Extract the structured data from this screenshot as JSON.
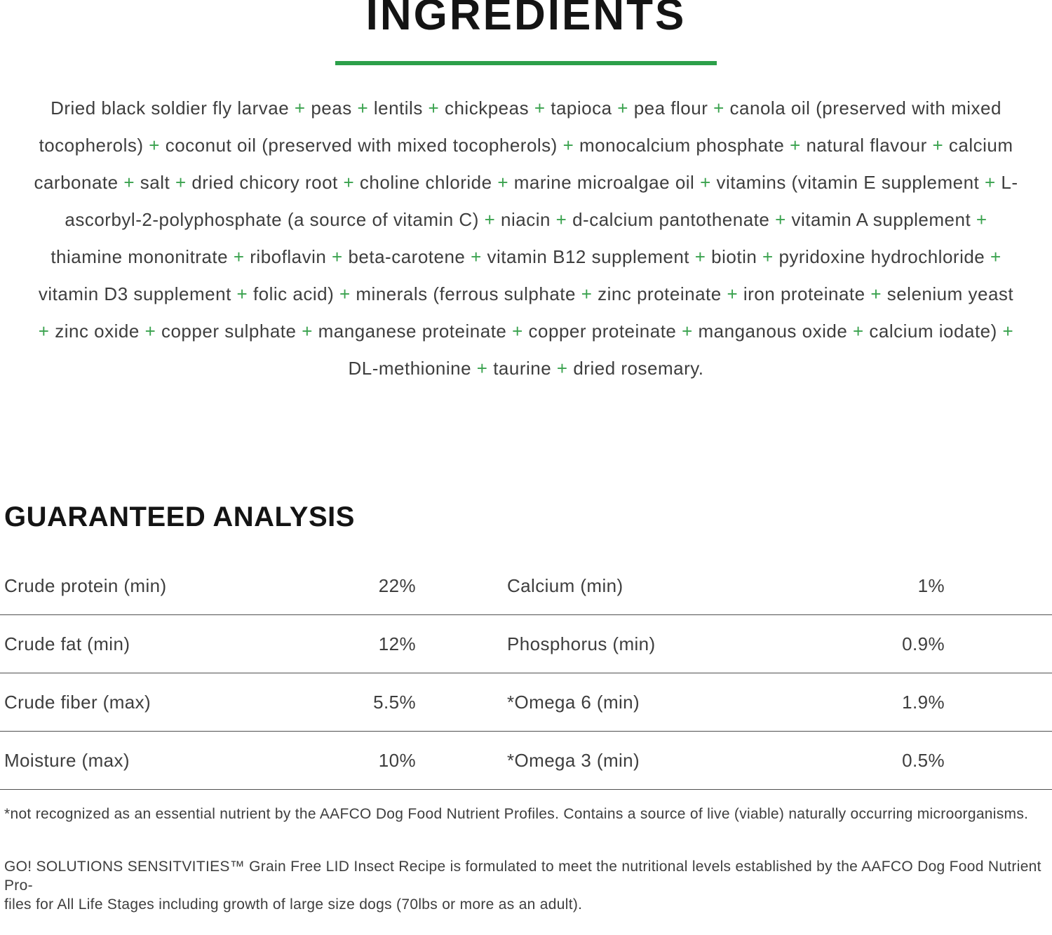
{
  "colors": {
    "accent_green": "#2ca04a",
    "plus_green": "#3aa24e",
    "heading": "#141414",
    "body_text": "#3e3e3e",
    "divider": "#4f4f4f"
  },
  "ingredients": {
    "title": "INGREDIENTS",
    "text": "Dried black soldier fly larvae + peas + lentils + chickpeas + tapioca + pea flour + canola oil (preserved with mixed tocopherols) + coconut oil (preserved with mixed tocopherols) + monocalcium phosphate + natural flavour + calcium carbonate + salt + dried chicory root + choline chloride + marine microalgae oil + vitamins (vitamin E supplement + L-ascorbyl-2-polyphosphate (a source of vitamin C) + niacin + d-calcium pantothenate + vitamin A supplement + thiamine mononitrate + riboflavin + beta-carotene + vitamin B12 supplement + biotin + pyridoxine hydrochloride + vitamin D3 supplement + folic acid) + minerals (ferrous sulphate + zinc proteinate + iron proteinate + selenium yeast + zinc oxide + copper sulphate + manganese proteinate + copper proteinate + manganous oxide + calcium iodate) + DL-methionine + taurine + dried rosemary."
  },
  "guaranteed_analysis": {
    "title": "GUARANTEED ANALYSIS",
    "rows": [
      {
        "left_label": "Crude protein (min)",
        "left_value": "22%",
        "right_label": "Calcium (min)",
        "right_value": "1%"
      },
      {
        "left_label": "Crude fat (min)",
        "left_value": "12%",
        "right_label": "Phosphorus (min)",
        "right_value": "0.9%"
      },
      {
        "left_label": "Crude fiber (max)",
        "left_value": "5.5%",
        "right_label": "*Omega 6 (min)",
        "right_value": "1.9%"
      },
      {
        "left_label": "Moisture (max)",
        "left_value": "10%",
        "right_label": "*Omega 3 (min)",
        "right_value": "0.5%"
      }
    ],
    "footnote": "*not recognized as an essential nutrient by the AAFCO Dog Food Nutrient Profiles. Contains a source of live (viable) naturally occurring microorganisms."
  },
  "aafco_statement": {
    "lines": [
      "GO! SOLUTIONS SENSITVITIES™ Grain Free LID Insect Recipe is formulated to meet the nutritional levels established by the AAFCO Dog Food Nutrient Pro-",
      "files for All Life Stages including growth of large size dogs (70lbs or more as an adult)."
    ]
  }
}
